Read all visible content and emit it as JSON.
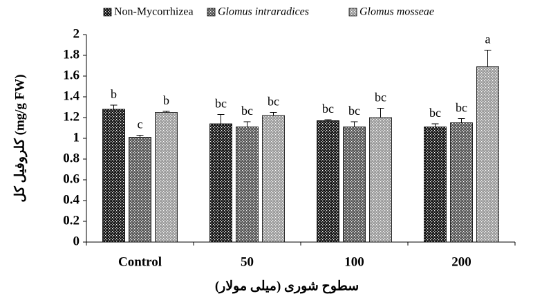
{
  "chart_data": {
    "type": "bar",
    "ylabel": "کلروفیل کل (mg/g FW)",
    "xlabel": "سطوح شوری (میلی مولار)",
    "categories": [
      "Control",
      "50",
      "100",
      "200"
    ],
    "series": [
      {
        "name": "Non-Mycorrhizea",
        "color": "#111111",
        "italic": false,
        "values": [
          1.28,
          1.14,
          1.17,
          1.11
        ],
        "errors": [
          0.04,
          0.09,
          0.01,
          0.03
        ],
        "letters": [
          "b",
          "bc",
          "bc",
          "bc"
        ]
      },
      {
        "name": "Glomus intraradices",
        "color": "#555555",
        "italic": true,
        "values": [
          1.01,
          1.11,
          1.11,
          1.15
        ],
        "errors": [
          0.02,
          0.05,
          0.05,
          0.04
        ],
        "letters": [
          "c",
          "bc",
          "bc",
          "bc"
        ]
      },
      {
        "name": "Glomus mosseae",
        "color": "#9a9a9a",
        "italic": true,
        "values": [
          1.25,
          1.22,
          1.2,
          1.69
        ],
        "errors": [
          0.01,
          0.03,
          0.09,
          0.16
        ],
        "letters": [
          "b",
          "bc",
          "bc",
          "a"
        ]
      }
    ],
    "ylim": [
      0,
      2
    ],
    "yticks": [
      0,
      0.2,
      0.4,
      0.6,
      0.8,
      1,
      1.2,
      1.4,
      1.6,
      1.8,
      2
    ],
    "legend": "top"
  }
}
